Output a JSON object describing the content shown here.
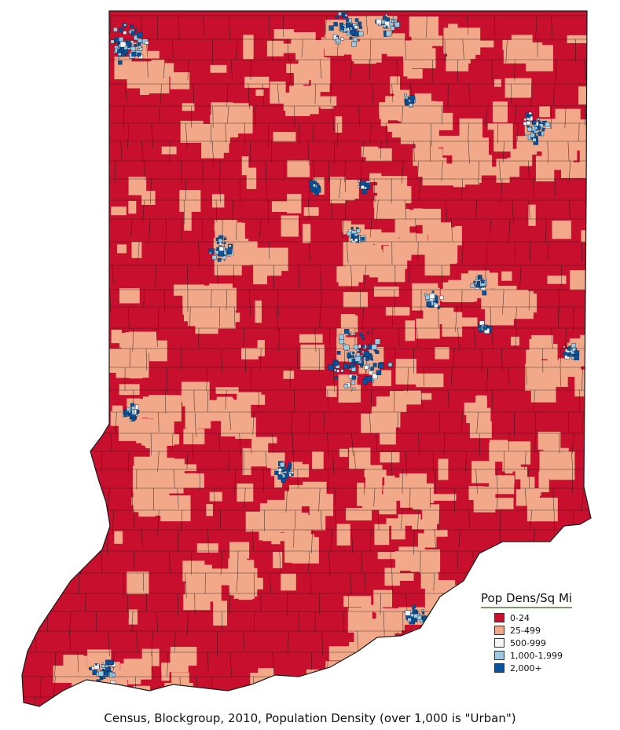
{
  "colors": {
    "low": "#c8102e",
    "mid": "#f2a98a",
    "urban_light": "#f4f4f4",
    "urban_mid": "#9ecae1",
    "urban_high": "#08519c",
    "border": "#1a1a1a"
  },
  "legend": {
    "title": "Pop Dens/Sq Mi",
    "items": [
      {
        "label": "0-24",
        "color": "#c8102e"
      },
      {
        "label": "25-499",
        "color": "#f2a98a"
      },
      {
        "label": "500-999",
        "color": "#f4f4f4"
      },
      {
        "label": "1,000-1,999",
        "color": "#9ecae1"
      },
      {
        "label": "2,000+",
        "color": "#08519c"
      }
    ]
  },
  "caption": "Census, Blockgroup, 2010, Population Density (over 1,000 is \"Urban\")"
}
